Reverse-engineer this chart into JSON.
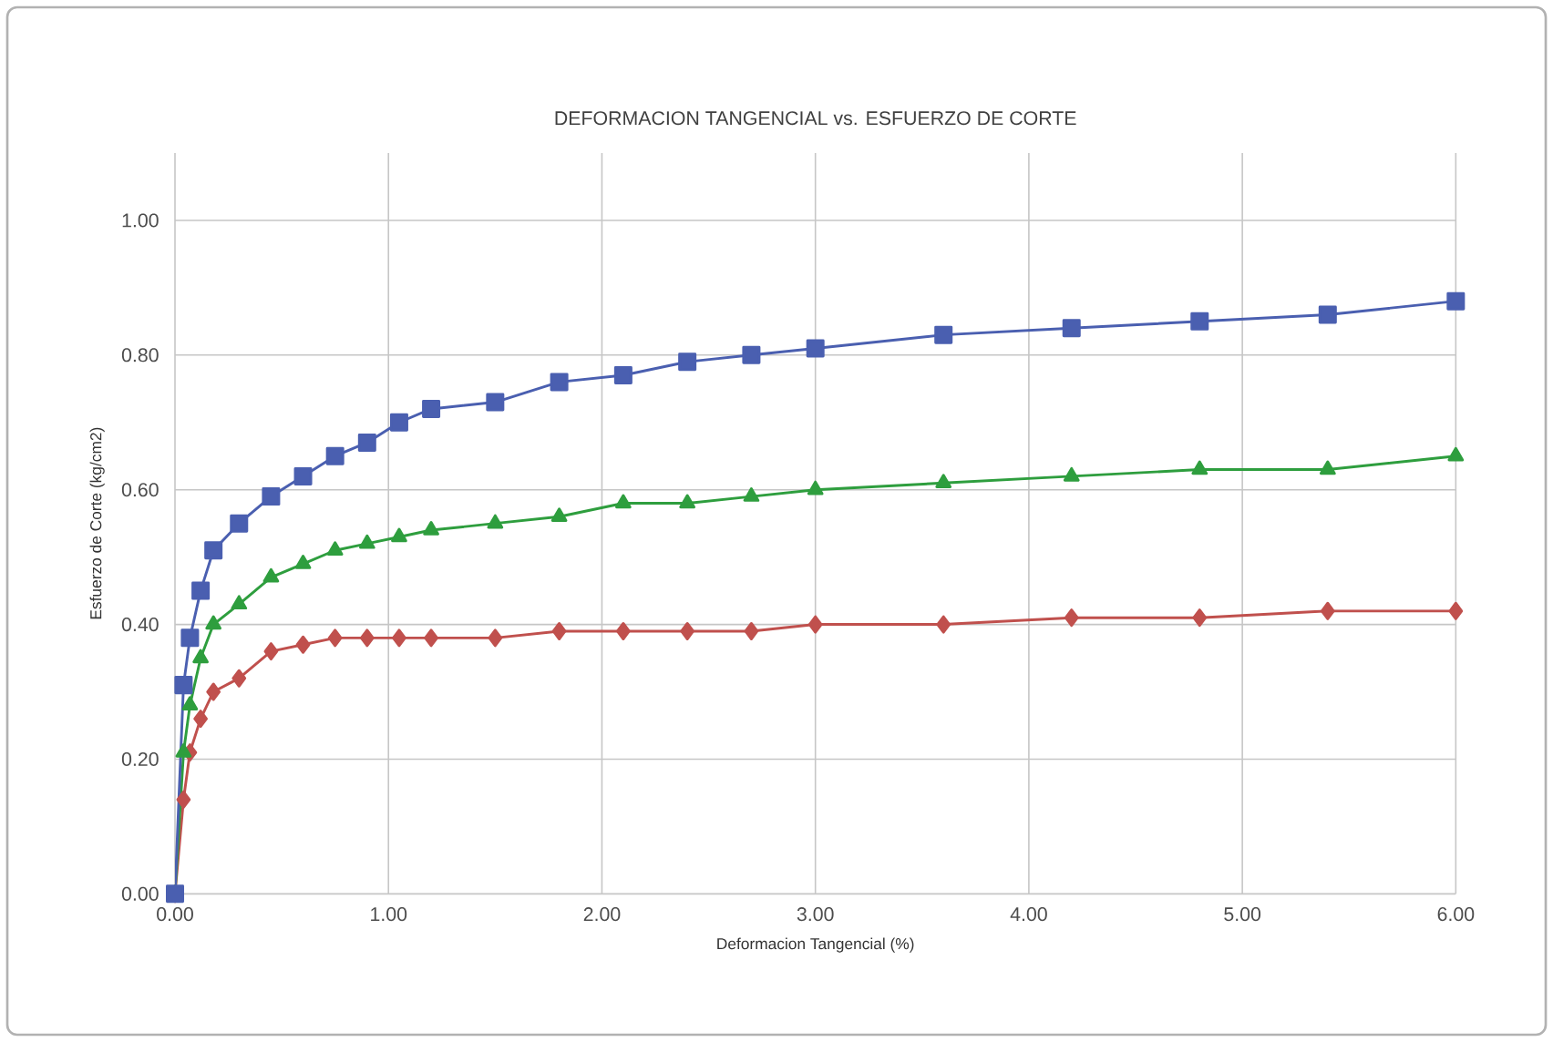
{
  "chart_data": {
    "type": "line",
    "title": "DEFORMACION TANGENCIAL vs. ESFUERZO DE CORTE",
    "xlabel": "Deformacion Tangencial (%)",
    "ylabel": "Esfuerzo de Corte (kg/cm2)",
    "x": [
      0,
      0.04,
      0.07,
      0.12,
      0.18,
      0.3,
      0.45,
      0.6,
      0.75,
      0.9,
      1.05,
      1.2,
      1.5,
      1.8,
      2.1,
      2.4,
      2.7,
      3.0,
      3.6,
      4.2,
      4.8,
      5.4,
      6.0
    ],
    "series": [
      {
        "color": "#c0504d",
        "marker": "diamond",
        "values": [
          0,
          0.14,
          0.21,
          0.26,
          0.3,
          0.32,
          0.36,
          0.37,
          0.38,
          0.38,
          0.38,
          0.38,
          0.38,
          0.39,
          0.39,
          0.39,
          0.39,
          0.4,
          0.4,
          0.41,
          0.41,
          0.42,
          0.42
        ]
      },
      {
        "color": "#2e9e3e",
        "marker": "triangle",
        "values": [
          0,
          0.21,
          0.28,
          0.35,
          0.4,
          0.43,
          0.47,
          0.49,
          0.51,
          0.52,
          0.53,
          0.54,
          0.55,
          0.56,
          0.58,
          0.58,
          0.59,
          0.6,
          0.61,
          0.62,
          0.63,
          0.63,
          0.65
        ]
      },
      {
        "color": "#4a5fb0",
        "marker": "square",
        "values": [
          0,
          0.31,
          0.38,
          0.45,
          0.51,
          0.55,
          0.59,
          0.62,
          0.65,
          0.67,
          0.7,
          0.72,
          0.73,
          0.76,
          0.77,
          0.79,
          0.8,
          0.81,
          0.83,
          0.84,
          0.85,
          0.86,
          0.88
        ]
      }
    ],
    "xlim": [
      0,
      6
    ],
    "xticks": [
      {
        "value": 0,
        "label": "0.00"
      },
      {
        "value": 1,
        "label": "1.00"
      },
      {
        "value": 2,
        "label": "2.00"
      },
      {
        "value": 3,
        "label": "3.00"
      },
      {
        "value": 4,
        "label": "4.00"
      },
      {
        "value": 5,
        "label": "5.00"
      },
      {
        "value": 6,
        "label": "6.00"
      }
    ],
    "ylim": [
      0,
      1.1
    ],
    "yticks": [
      {
        "value": 0,
        "label": "0.00"
      },
      {
        "value": 0.2,
        "label": "0.20"
      },
      {
        "value": 0.4,
        "label": "0.40"
      },
      {
        "value": 0.6,
        "label": "0.60"
      },
      {
        "value": 0.8,
        "label": "0.80"
      },
      {
        "value": 1,
        "label": "1.00"
      }
    ],
    "grid": true,
    "line_style": "solid"
  }
}
